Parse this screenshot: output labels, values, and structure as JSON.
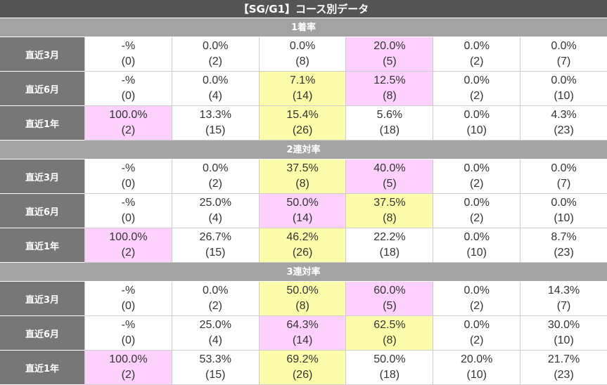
{
  "title": "【SG/G1】コース別データ",
  "sections": [
    {
      "name": "1着率",
      "rows": [
        {
          "label": "直近3月",
          "cells": [
            {
              "pct": "-%",
              "n": "(0)",
              "hl": ""
            },
            {
              "pct": "0.0%",
              "n": "(2)",
              "hl": ""
            },
            {
              "pct": "0.0%",
              "n": "(8)",
              "hl": ""
            },
            {
              "pct": "20.0%",
              "n": "(5)",
              "hl": "pink"
            },
            {
              "pct": "0.0%",
              "n": "(2)",
              "hl": ""
            },
            {
              "pct": "0.0%",
              "n": "(7)",
              "hl": ""
            }
          ]
        },
        {
          "label": "直近6月",
          "cells": [
            {
              "pct": "-%",
              "n": "(0)",
              "hl": ""
            },
            {
              "pct": "0.0%",
              "n": "(4)",
              "hl": ""
            },
            {
              "pct": "7.1%",
              "n": "(14)",
              "hl": "yellow"
            },
            {
              "pct": "12.5%",
              "n": "(8)",
              "hl": "pink"
            },
            {
              "pct": "0.0%",
              "n": "(2)",
              "hl": ""
            },
            {
              "pct": "0.0%",
              "n": "(10)",
              "hl": ""
            }
          ]
        },
        {
          "label": "直近1年",
          "cells": [
            {
              "pct": "100.0%",
              "n": "(2)",
              "hl": "pink"
            },
            {
              "pct": "13.3%",
              "n": "(15)",
              "hl": ""
            },
            {
              "pct": "15.4%",
              "n": "(26)",
              "hl": "yellow"
            },
            {
              "pct": "5.6%",
              "n": "(18)",
              "hl": ""
            },
            {
              "pct": "0.0%",
              "n": "(10)",
              "hl": ""
            },
            {
              "pct": "4.3%",
              "n": "(23)",
              "hl": ""
            }
          ]
        }
      ]
    },
    {
      "name": "2連対率",
      "rows": [
        {
          "label": "直近3月",
          "cells": [
            {
              "pct": "-%",
              "n": "(0)",
              "hl": ""
            },
            {
              "pct": "0.0%",
              "n": "(2)",
              "hl": ""
            },
            {
              "pct": "37.5%",
              "n": "(8)",
              "hl": "yellow"
            },
            {
              "pct": "40.0%",
              "n": "(5)",
              "hl": "pink"
            },
            {
              "pct": "0.0%",
              "n": "(2)",
              "hl": ""
            },
            {
              "pct": "0.0%",
              "n": "(7)",
              "hl": ""
            }
          ]
        },
        {
          "label": "直近6月",
          "cells": [
            {
              "pct": "-%",
              "n": "(0)",
              "hl": ""
            },
            {
              "pct": "25.0%",
              "n": "(4)",
              "hl": ""
            },
            {
              "pct": "50.0%",
              "n": "(14)",
              "hl": "pink"
            },
            {
              "pct": "37.5%",
              "n": "(8)",
              "hl": "yellow"
            },
            {
              "pct": "0.0%",
              "n": "(2)",
              "hl": ""
            },
            {
              "pct": "0.0%",
              "n": "(10)",
              "hl": ""
            }
          ]
        },
        {
          "label": "直近1年",
          "cells": [
            {
              "pct": "100.0%",
              "n": "(2)",
              "hl": "pink"
            },
            {
              "pct": "26.7%",
              "n": "(15)",
              "hl": ""
            },
            {
              "pct": "46.2%",
              "n": "(26)",
              "hl": "yellow"
            },
            {
              "pct": "22.2%",
              "n": "(18)",
              "hl": ""
            },
            {
              "pct": "0.0%",
              "n": "(10)",
              "hl": ""
            },
            {
              "pct": "8.7%",
              "n": "(23)",
              "hl": ""
            }
          ]
        }
      ]
    },
    {
      "name": "3連対率",
      "rows": [
        {
          "label": "直近3月",
          "cells": [
            {
              "pct": "-%",
              "n": "(0)",
              "hl": ""
            },
            {
              "pct": "0.0%",
              "n": "(2)",
              "hl": ""
            },
            {
              "pct": "50.0%",
              "n": "(8)",
              "hl": "yellow"
            },
            {
              "pct": "60.0%",
              "n": "(5)",
              "hl": "pink"
            },
            {
              "pct": "0.0%",
              "n": "(2)",
              "hl": ""
            },
            {
              "pct": "14.3%",
              "n": "(7)",
              "hl": ""
            }
          ]
        },
        {
          "label": "直近6月",
          "cells": [
            {
              "pct": "-%",
              "n": "(0)",
              "hl": ""
            },
            {
              "pct": "25.0%",
              "n": "(4)",
              "hl": ""
            },
            {
              "pct": "64.3%",
              "n": "(14)",
              "hl": "pink"
            },
            {
              "pct": "62.5%",
              "n": "(8)",
              "hl": "yellow"
            },
            {
              "pct": "0.0%",
              "n": "(2)",
              "hl": ""
            },
            {
              "pct": "30.0%",
              "n": "(10)",
              "hl": ""
            }
          ]
        },
        {
          "label": "直近1年",
          "cells": [
            {
              "pct": "100.0%",
              "n": "(2)",
              "hl": "pink"
            },
            {
              "pct": "53.3%",
              "n": "(15)",
              "hl": ""
            },
            {
              "pct": "69.2%",
              "n": "(26)",
              "hl": "yellow"
            },
            {
              "pct": "50.0%",
              "n": "(18)",
              "hl": ""
            },
            {
              "pct": "20.0%",
              "n": "(10)",
              "hl": ""
            },
            {
              "pct": "21.7%",
              "n": "(23)",
              "hl": ""
            }
          ]
        }
      ]
    }
  ],
  "colors": {
    "pink": "#fdd0fd",
    "yellow": "#fcfcaa",
    "header": "#555555",
    "section": "#a3a3a3",
    "rowlabel": "#777777"
  }
}
